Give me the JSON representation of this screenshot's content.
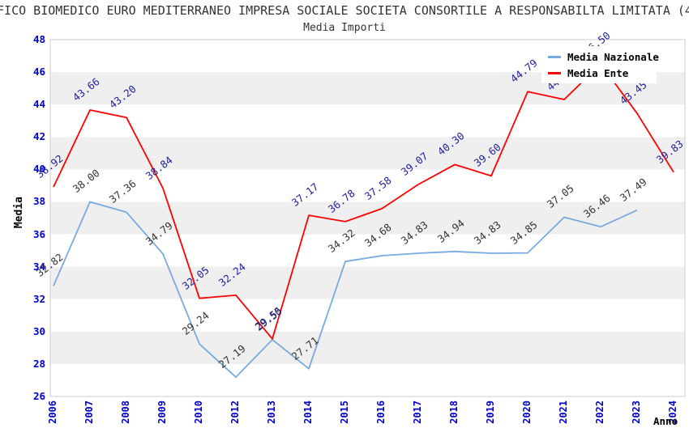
{
  "page": {
    "title": "IFICO BIOMEDICO EURO MEDITERRANEO IMPRESA SOCIALE SOCIETA CONSORTILE A RESPONSABILTA LIMITATA (4",
    "title_note": "clipped at both left and right edges of the window"
  },
  "chart_data": {
    "type": "line",
    "title": "Media Importi",
    "xlabel": "Anno",
    "ylabel": "Media",
    "ylim": [
      26,
      48
    ],
    "yticks": [
      26,
      28,
      30,
      32,
      34,
      36,
      38,
      40,
      42,
      44,
      46,
      48
    ],
    "grid": "alternating horizontal bands (white / light gray)",
    "legend_position": "top-right",
    "axis_tick_color": "#0000CC",
    "band_gray": "#EFEFEF",
    "plot_border_color": "#CCCCCC",
    "categories": [
      "2006",
      "2007",
      "2008",
      "2009",
      "2010",
      "2012",
      "2013",
      "2014",
      "2015",
      "2016",
      "2017",
      "2018",
      "2019",
      "2020",
      "2021",
      "2022",
      "2023",
      "2024"
    ],
    "series": [
      {
        "name": "Media Nazionale",
        "color": "#76ABDF",
        "label_color": "#333333",
        "values": [
          32.82,
          38.0,
          37.36,
          34.79,
          29.24,
          27.19,
          29.5,
          27.71,
          34.32,
          34.68,
          34.83,
          34.94,
          34.83,
          34.85,
          37.05,
          36.46,
          37.49,
          null
        ]
      },
      {
        "name": "Media Ente",
        "color": "#FF0000",
        "label_color": "#1F1F9C",
        "values": [
          38.92,
          43.66,
          43.2,
          38.84,
          32.05,
          32.24,
          29.55,
          37.17,
          36.78,
          37.58,
          39.07,
          40.3,
          39.6,
          44.79,
          44.31,
          46.5,
          43.45,
          39.83
        ]
      }
    ]
  }
}
